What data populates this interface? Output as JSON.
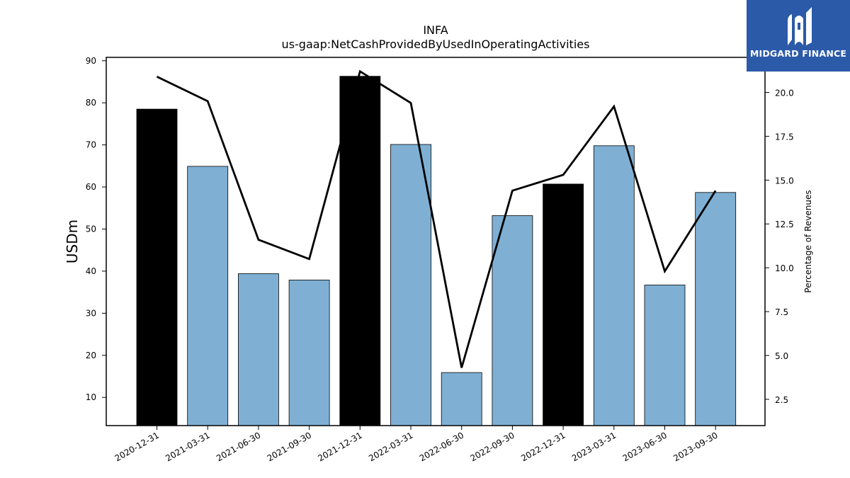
{
  "chart_data": {
    "type": "bar",
    "title": "INFA",
    "subtitle": "us-gaap:NetCashProvidedByUsedInOperatingActivities",
    "ylabel": "USDm",
    "y2label": "Percentage of Revenues",
    "categories": [
      "2020-12-31",
      "2021-03-31",
      "2021-06-30",
      "2021-09-30",
      "2021-12-31",
      "2022-03-31",
      "2022-06-30",
      "2022-09-30",
      "2022-12-31",
      "2023-03-31",
      "2023-06-30",
      "2023-09-30"
    ],
    "values": [
      78.5,
      64.9,
      39.4,
      37.9,
      86.3,
      70.1,
      15.9,
      53.2,
      60.7,
      69.8,
      36.7,
      58.7
    ],
    "bar_colors": [
      "#000000",
      "#7fb0d4",
      "#7fb0d4",
      "#7fb0d4",
      "#000000",
      "#7fb0d4",
      "#7fb0d4",
      "#7fb0d4",
      "#000000",
      "#7fb0d4",
      "#7fb0d4",
      "#7fb0d4"
    ],
    "line_values": [
      20.9,
      19.5,
      11.6,
      10.5,
      21.2,
      19.4,
      4.3,
      14.4,
      15.3,
      19.2,
      9.8,
      14.4
    ],
    "line_color": "#000000",
    "ylim": [
      3.3,
      90.8
    ],
    "y_ticks": [
      10,
      20,
      30,
      40,
      50,
      60,
      70,
      80,
      90
    ],
    "y2lim": [
      1.0,
      22.0
    ],
    "y2_ticks": [
      2.5,
      5.0,
      7.5,
      10.0,
      12.5,
      15.0,
      17.5,
      20.0
    ],
    "grid": false
  },
  "logo": {
    "text": "MIDGARD FINANCE",
    "bg_color": "#2b5aa8"
  }
}
